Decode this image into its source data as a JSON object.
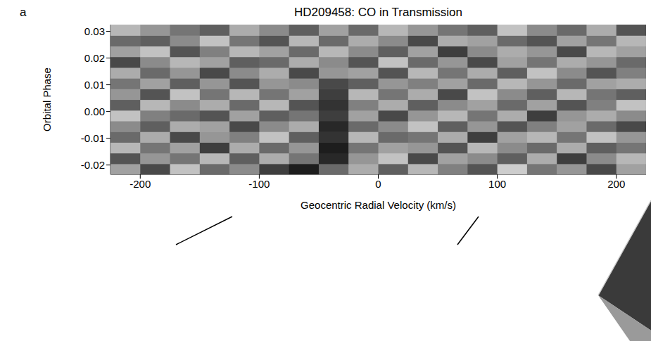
{
  "chart_data": {
    "type": "heatmap",
    "panel_label": "a",
    "title": "HD209458: CO in Transmission",
    "x_label": "Geocentric Radial Velocity (km/s)",
    "y_label": "Orbital Phase",
    "xlim": [
      -225,
      225
    ],
    "ylim": [
      -0.0235,
      0.0325
    ],
    "xticks": [
      -200,
      -100,
      0,
      100,
      200
    ],
    "yticks": [
      -0.02,
      -0.01,
      {
        "value": 0,
        "label": "0.00"
      },
      0.01,
      0.02,
      0.03
    ],
    "x": [
      -212.5,
      -187.5,
      -162.5,
      -137.5,
      -112.5,
      -87.5,
      -62.5,
      -37.5,
      -12.5,
      12.5,
      37.5,
      62.5,
      87.5,
      112.5,
      137.5,
      162.5,
      187.5,
      212.5
    ],
    "y": [
      -0.0215,
      -0.0175,
      -0.0135,
      -0.0095,
      -0.0055,
      -0.0015,
      0.0025,
      0.0065,
      0.0105,
      0.0145,
      0.0185,
      0.0225,
      0.0265,
      0.0305
    ],
    "cells": [
      [
        0.3,
        -0.5,
        0.6,
        -0.2,
        0.1,
        -0.6,
        -0.9,
        -0.2,
        0.4,
        -0.3,
        0.5,
        0.0,
        -0.4,
        0.7,
        -0.1,
        0.2,
        -0.5,
        0.3
      ],
      [
        -0.4,
        0.2,
        -0.1,
        0.5,
        -0.3,
        0.4,
        -0.1,
        -0.8,
        0.2,
        0.6,
        -0.5,
        0.3,
        0.1,
        -0.3,
        0.4,
        -0.6,
        0.1,
        0.5
      ],
      [
        0.5,
        -0.1,
        0.3,
        -0.6,
        0.4,
        -0.2,
        0.2,
        -0.9,
        -0.1,
        0.3,
        0.2,
        -0.4,
        0.5,
        0.1,
        -0.2,
        0.4,
        -0.3,
        -0.1
      ],
      [
        -0.2,
        0.4,
        -0.5,
        0.2,
        0.0,
        0.6,
        -0.3,
        -0.7,
        0.5,
        -0.2,
        -0.1,
        0.4,
        -0.6,
        0.3,
        0.5,
        -0.1,
        0.6,
        0.2
      ],
      [
        0.1,
        -0.3,
        0.4,
        0.3,
        -0.5,
        0.1,
        0.4,
        -0.8,
        -0.2,
        0.1,
        0.6,
        -0.3,
        0.2,
        -0.4,
        0.0,
        0.3,
        -0.2,
        -0.5
      ],
      [
        0.6,
        0.0,
        -0.2,
        -0.4,
        0.3,
        -0.3,
        -0.1,
        -0.6,
        0.3,
        -0.5,
        0.2,
        0.5,
        -0.1,
        0.4,
        -0.6,
        0.2,
        0.4,
        0.1
      ],
      [
        -0.3,
        0.5,
        0.1,
        0.4,
        -0.2,
        0.5,
        -0.4,
        -0.7,
        0.0,
        0.4,
        -0.3,
        0.1,
        0.3,
        -0.2,
        0.3,
        -0.4,
        0.0,
        0.6
      ],
      [
        0.2,
        -0.4,
        0.6,
        -0.1,
        0.5,
        -0.1,
        0.3,
        -0.6,
        0.5,
        -0.1,
        0.4,
        -0.5,
        0.6,
        0.1,
        -0.3,
        0.5,
        -0.1,
        -0.3
      ],
      [
        -0.1,
        0.3,
        -0.3,
        0.2,
        -0.4,
        0.2,
        0.1,
        -0.5,
        -0.3,
        0.2,
        0.0,
        0.3,
        -0.2,
        0.5,
        0.2,
        -0.2,
        0.3,
        0.4
      ],
      [
        0.4,
        -0.2,
        0.2,
        -0.5,
        0.1,
        0.4,
        -0.5,
        0.2,
        0.3,
        -0.4,
        0.5,
        -0.1,
        0.4,
        -0.3,
        0.6,
        0.1,
        -0.4,
        0.0
      ],
      [
        -0.5,
        0.1,
        0.5,
        0.3,
        -0.3,
        -0.2,
        0.4,
        0.1,
        -0.4,
        0.6,
        -0.2,
        0.2,
        -0.5,
        0.3,
        -0.1,
        0.4,
        0.2,
        -0.2
      ],
      [
        0.3,
        0.6,
        -0.4,
        0.0,
        0.5,
        0.3,
        -0.2,
        0.5,
        0.1,
        -0.3,
        0.3,
        -0.6,
        0.1,
        0.4,
        0.2,
        -0.5,
        0.5,
        0.3
      ],
      [
        -0.2,
        -0.3,
        0.1,
        0.6,
        -0.1,
        -0.4,
        0.5,
        -0.2,
        0.4,
        0.1,
        -0.5,
        0.4,
        0.3,
        -0.2,
        -0.4,
        0.3,
        -0.1,
        0.5
      ],
      [
        0.5,
        0.2,
        -0.1,
        -0.3,
        0.4,
        0.1,
        -0.3,
        0.3,
        -0.2,
        0.5,
        0.2,
        -0.1,
        -0.3,
        0.6,
        0.1,
        -0.2,
        0.4,
        -0.4
      ]
    ]
  }
}
